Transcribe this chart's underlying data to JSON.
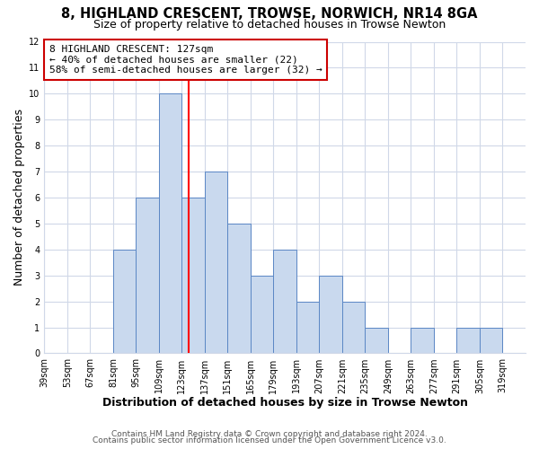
{
  "title": "8, HIGHLAND CRESCENT, TROWSE, NORWICH, NR14 8GA",
  "subtitle": "Size of property relative to detached houses in Trowse Newton",
  "xlabel": "Distribution of detached houses by size in Trowse Newton",
  "ylabel": "Number of detached properties",
  "bin_edges": [
    39,
    53,
    67,
    81,
    95,
    109,
    123,
    137,
    151,
    165,
    179,
    193,
    207,
    221,
    235,
    249,
    263,
    277,
    291,
    305,
    319
  ],
  "bar_heights": [
    0,
    0,
    0,
    4,
    6,
    10,
    6,
    7,
    5,
    3,
    4,
    2,
    3,
    2,
    1,
    0,
    1,
    0,
    1,
    1
  ],
  "bar_color": "#c9d9ee",
  "bar_edge_color": "#5b87c5",
  "red_line_x": 127,
  "ylim": [
    0,
    12
  ],
  "yticks": [
    0,
    1,
    2,
    3,
    4,
    5,
    6,
    7,
    8,
    9,
    10,
    11,
    12
  ],
  "annotation_title": "8 HIGHLAND CRESCENT: 127sqm",
  "annotation_line1": "← 40% of detached houses are smaller (22)",
  "annotation_line2": "58% of semi-detached houses are larger (32) →",
  "annotation_box_color": "#ffffff",
  "annotation_box_edge": "#cc0000",
  "footer1": "Contains HM Land Registry data © Crown copyright and database right 2024.",
  "footer2": "Contains public sector information licensed under the Open Government Licence v3.0.",
  "background_color": "#ffffff",
  "plot_bg_color": "#ffffff",
  "grid_color": "#d0d8e8",
  "title_fontsize": 10.5,
  "subtitle_fontsize": 9,
  "axis_label_fontsize": 9,
  "tick_fontsize": 7,
  "footer_fontsize": 6.5
}
